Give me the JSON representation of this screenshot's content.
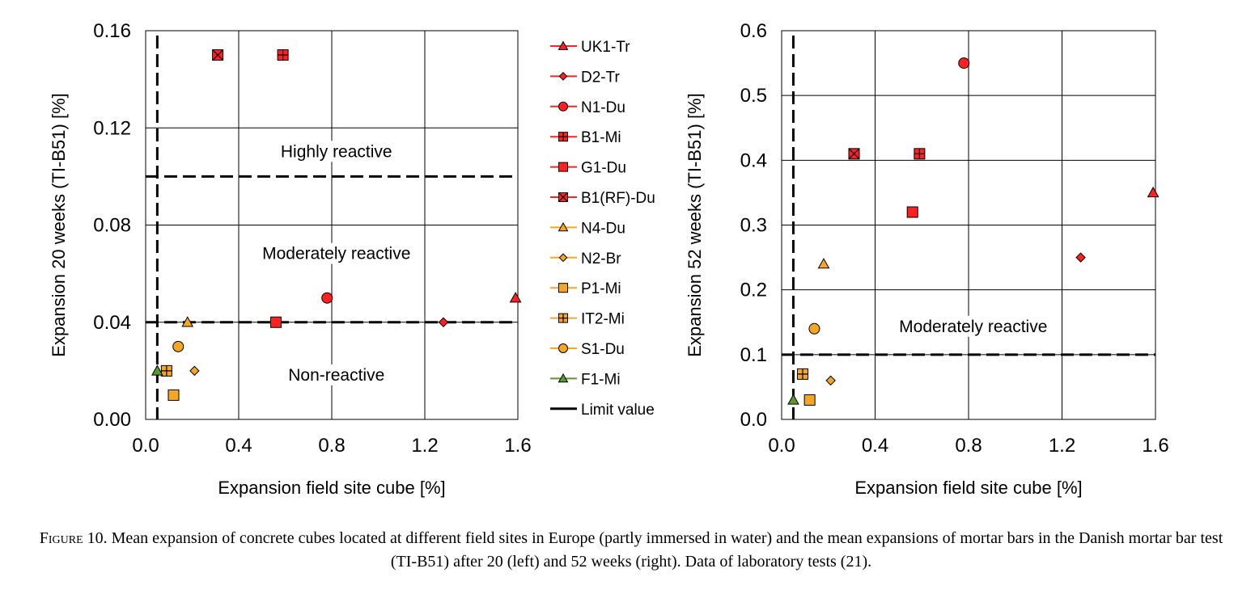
{
  "caption": {
    "label": "Figure 10.",
    "text": "Mean expansion of concrete cubes located at different field sites in Europe (partly immersed in water) and the mean expansions of mortar bars in the Danish mortar bar test (TI-B51) after 20 (left) and 52 weeks (right). Data of laboratory tests (21)."
  },
  "chart_data": [
    {
      "type": "scatter",
      "xlabel": "Expansion field site cube [%]",
      "ylabel": "Expansion 20 weeks (TI-B51) [%]",
      "xlim": [
        0,
        1.6
      ],
      "ylim": [
        0,
        0.16
      ],
      "x_ticks": [
        "0.0",
        "0.4",
        "0.8",
        "1.2",
        "1.6"
      ],
      "y_ticks": [
        "0.00",
        "0.04",
        "0.08",
        "0.12",
        "0.16"
      ],
      "grid": true,
      "limit_lines": {
        "horizontal": [
          0.04,
          0.1
        ],
        "vertical": [
          0.05
        ]
      },
      "annotations": [
        {
          "text": "Highly reactive",
          "x": 0.82,
          "y": 0.108
        },
        {
          "text": "Moderately reactive",
          "x": 0.82,
          "y": 0.066
        },
        {
          "text": "Non-reactive",
          "x": 0.82,
          "y": 0.016
        }
      ],
      "series": [
        {
          "name": "UK1-Tr",
          "marker": "triangle",
          "color": "#ff2020",
          "points": [
            [
              1.59,
              0.05
            ]
          ]
        },
        {
          "name": "D2-Tr",
          "marker": "diamond",
          "color": "#ff2020",
          "points": [
            [
              1.28,
              0.04
            ]
          ]
        },
        {
          "name": "N1-Du",
          "marker": "circle",
          "color": "#ff2020",
          "points": [
            [
              0.78,
              0.05
            ]
          ]
        },
        {
          "name": "B1-Mi",
          "marker": "square-plus",
          "color": "#ff2020",
          "points": [
            [
              0.59,
              0.15
            ]
          ]
        },
        {
          "name": "G1-Du",
          "marker": "square",
          "color": "#ff2020",
          "points": [
            [
              0.56,
              0.04
            ]
          ]
        },
        {
          "name": "B1(RF)-Du",
          "marker": "square-x",
          "color": "#ff2020",
          "points": [
            [
              0.31,
              0.15
            ]
          ]
        },
        {
          "name": "N4-Du",
          "marker": "triangle",
          "color": "#f5a623",
          "points": [
            [
              0.18,
              0.04
            ]
          ]
        },
        {
          "name": "N2-Br",
          "marker": "diamond",
          "color": "#f5a623",
          "points": [
            [
              0.21,
              0.02
            ]
          ]
        },
        {
          "name": "P1-Mi",
          "marker": "square",
          "color": "#f5a623",
          "points": [
            [
              0.12,
              0.01
            ]
          ]
        },
        {
          "name": "IT2-Mi",
          "marker": "square-plus",
          "color": "#f5a623",
          "points": [
            [
              0.09,
              0.02
            ]
          ]
        },
        {
          "name": "S1-Du",
          "marker": "circle",
          "color": "#f5a623",
          "points": [
            [
              0.14,
              0.03
            ]
          ]
        },
        {
          "name": "F1-Mi",
          "marker": "triangle",
          "color": "#5a9a2a",
          "points": [
            [
              0.05,
              0.02
            ]
          ]
        }
      ]
    },
    {
      "type": "scatter",
      "xlabel": "Expansion field site cube [%]",
      "ylabel": "Expansion 52 weeks (TI-B51) [%]",
      "xlim": [
        0,
        1.6
      ],
      "ylim": [
        0,
        0.6
      ],
      "x_ticks": [
        "0.0",
        "0.4",
        "0.8",
        "1.2",
        "1.6"
      ],
      "y_ticks": [
        "0.0",
        "0.1",
        "0.2",
        "0.3",
        "0.4",
        "0.5",
        "0.6"
      ],
      "grid": true,
      "limit_lines": {
        "horizontal": [
          0.1
        ],
        "vertical": [
          0.05
        ]
      },
      "annotations": [
        {
          "text": "Moderately reactive",
          "x": 0.82,
          "y": 0.135
        }
      ],
      "series": [
        {
          "name": "UK1-Tr",
          "marker": "triangle",
          "color": "#ff2020",
          "points": [
            [
              1.59,
              0.35
            ]
          ]
        },
        {
          "name": "D2-Tr",
          "marker": "diamond",
          "color": "#ff2020",
          "points": [
            [
              1.28,
              0.25
            ]
          ]
        },
        {
          "name": "N1-Du",
          "marker": "circle",
          "color": "#ff2020",
          "points": [
            [
              0.78,
              0.55
            ]
          ]
        },
        {
          "name": "B1-Mi",
          "marker": "square-plus",
          "color": "#ff2020",
          "points": [
            [
              0.59,
              0.41
            ]
          ]
        },
        {
          "name": "G1-Du",
          "marker": "square",
          "color": "#ff2020",
          "points": [
            [
              0.56,
              0.32
            ]
          ]
        },
        {
          "name": "B1(RF)-Du",
          "marker": "square-x",
          "color": "#ff2020",
          "points": [
            [
              0.31,
              0.41
            ]
          ]
        },
        {
          "name": "N4-Du",
          "marker": "triangle",
          "color": "#f5a623",
          "points": [
            [
              0.18,
              0.24
            ]
          ]
        },
        {
          "name": "N2-Br",
          "marker": "diamond",
          "color": "#f5a623",
          "points": [
            [
              0.21,
              0.06
            ]
          ]
        },
        {
          "name": "P1-Mi",
          "marker": "square",
          "color": "#f5a623",
          "points": [
            [
              0.12,
              0.03
            ]
          ]
        },
        {
          "name": "IT2-Mi",
          "marker": "square-plus",
          "color": "#f5a623",
          "points": [
            [
              0.09,
              0.07
            ]
          ]
        },
        {
          "name": "S1-Du",
          "marker": "circle",
          "color": "#f5a623",
          "points": [
            [
              0.14,
              0.14
            ]
          ]
        },
        {
          "name": "F1-Mi",
          "marker": "triangle",
          "color": "#5a9a2a",
          "points": [
            [
              0.05,
              0.03
            ]
          ]
        }
      ]
    }
  ],
  "legend": {
    "placement": "between-charts",
    "items": [
      {
        "label": "UK1-Tr",
        "marker": "triangle",
        "color": "#ff2020"
      },
      {
        "label": "D2-Tr",
        "marker": "diamond",
        "color": "#ff2020"
      },
      {
        "label": "N1-Du",
        "marker": "circle",
        "color": "#ff2020"
      },
      {
        "label": "B1-Mi",
        "marker": "square-plus",
        "color": "#ff2020"
      },
      {
        "label": "G1-Du",
        "marker": "square",
        "color": "#ff2020"
      },
      {
        "label": "B1(RF)-Du",
        "marker": "square-x",
        "color": "#ff2020"
      },
      {
        "label": "N4-Du",
        "marker": "triangle",
        "color": "#f5a623"
      },
      {
        "label": "N2-Br",
        "marker": "diamond",
        "color": "#f5a623"
      },
      {
        "label": "P1-Mi",
        "marker": "square",
        "color": "#f5a623"
      },
      {
        "label": "IT2-Mi",
        "marker": "square-plus",
        "color": "#f5a623"
      },
      {
        "label": "S1-Du",
        "marker": "circle",
        "color": "#f5a623"
      },
      {
        "label": "F1-Mi",
        "marker": "triangle",
        "color": "#5a9a2a"
      },
      {
        "label": "Limit value",
        "marker": "dash-line",
        "color": "#000000"
      }
    ]
  }
}
